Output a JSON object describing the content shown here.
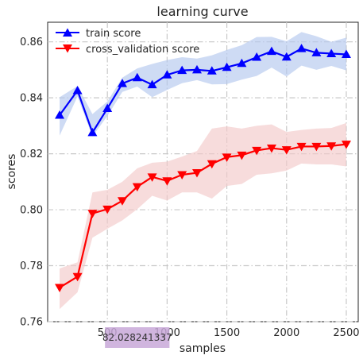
{
  "chart_data": {
    "type": "line",
    "title": "learning curve",
    "xlabel": "samples",
    "ylabel": "scores",
    "xlim": [
      0,
      2600
    ],
    "ylim": [
      0.76,
      0.867
    ],
    "xticks": [
      500,
      1000,
      1500,
      2000,
      2500
    ],
    "yticks": [
      0.76,
      0.78,
      0.8,
      0.82,
      0.84,
      0.86
    ],
    "ytick_labels": [
      "0.76",
      "0.78",
      "0.80",
      "0.82",
      "0.84",
      "0.86"
    ],
    "grid": true,
    "legend_position": "top-left",
    "x": [
      100,
      250,
      375,
      500,
      625,
      750,
      875,
      1000,
      1125,
      1250,
      1375,
      1500,
      1625,
      1750,
      1875,
      2000,
      2125,
      2250,
      2375,
      2500
    ],
    "series": [
      {
        "name": "train score",
        "color": "#0000ff",
        "band_color": "#b3c7ee",
        "marker": "triangle-up",
        "values": [
          0.8338,
          0.8426,
          0.8276,
          0.8362,
          0.8451,
          0.8472,
          0.8447,
          0.8482,
          0.8498,
          0.85,
          0.8496,
          0.8509,
          0.8523,
          0.8545,
          0.8566,
          0.8546,
          0.8576,
          0.8561,
          0.8558,
          0.8555
        ],
        "upper": [
          0.8402,
          0.8442,
          0.8342,
          0.8387,
          0.8472,
          0.8505,
          0.8521,
          0.8535,
          0.8545,
          0.854,
          0.8552,
          0.8571,
          0.8588,
          0.8617,
          0.8618,
          0.8602,
          0.8635,
          0.862,
          0.86,
          0.8615
        ],
        "lower": [
          0.8265,
          0.8405,
          0.8262,
          0.8335,
          0.8421,
          0.844,
          0.8402,
          0.8428,
          0.8452,
          0.8463,
          0.8448,
          0.8449,
          0.8465,
          0.8478,
          0.8508,
          0.8476,
          0.8515,
          0.85,
          0.8514,
          0.8498
        ]
      },
      {
        "name": "cross_validation score",
        "color": "#ff0000",
        "band_color": "#f2c9c9",
        "marker": "triangle-down",
        "values": [
          0.7722,
          0.7761,
          0.7987,
          0.8002,
          0.8032,
          0.8082,
          0.8117,
          0.8103,
          0.8125,
          0.8132,
          0.8164,
          0.8188,
          0.8195,
          0.8212,
          0.822,
          0.8214,
          0.8226,
          0.8226,
          0.8228,
          0.8234
        ],
        "upper": [
          0.779,
          0.7812,
          0.8062,
          0.8071,
          0.81,
          0.8148,
          0.8168,
          0.8172,
          0.819,
          0.821,
          0.829,
          0.8298,
          0.829,
          0.83,
          0.8305,
          0.8278,
          0.8285,
          0.829,
          0.8292,
          0.831
        ],
        "lower": [
          0.7645,
          0.7705,
          0.79,
          0.7932,
          0.7962,
          0.8002,
          0.805,
          0.8033,
          0.8062,
          0.8062,
          0.804,
          0.8085,
          0.8092,
          0.8125,
          0.813,
          0.814,
          0.8165,
          0.8162,
          0.8162,
          0.8155
        ]
      }
    ],
    "annotation": {
      "text": "82.028241337",
      "background": "#c8a8d8",
      "x_range": [
        480,
        1020
      ]
    }
  }
}
